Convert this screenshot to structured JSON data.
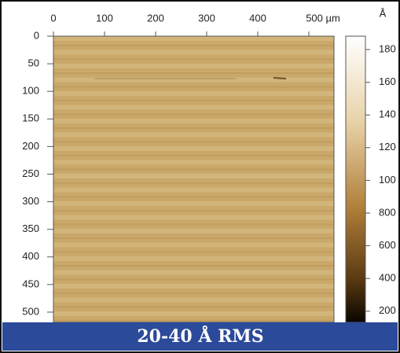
{
  "figure": {
    "x_ticks": [
      "0",
      "100",
      "200",
      "300",
      "400",
      "500 µm"
    ],
    "y_ticks": [
      "0",
      "50",
      "100",
      "150",
      "200",
      "250",
      "300",
      "350",
      "400",
      "450",
      "500"
    ],
    "colorbar_unit": "Å",
    "colorbar_ticks": [
      "180",
      "160",
      "140",
      "120",
      "100",
      "800",
      "600",
      "400",
      "200"
    ],
    "caption": "20-40 Å RMS"
  }
}
